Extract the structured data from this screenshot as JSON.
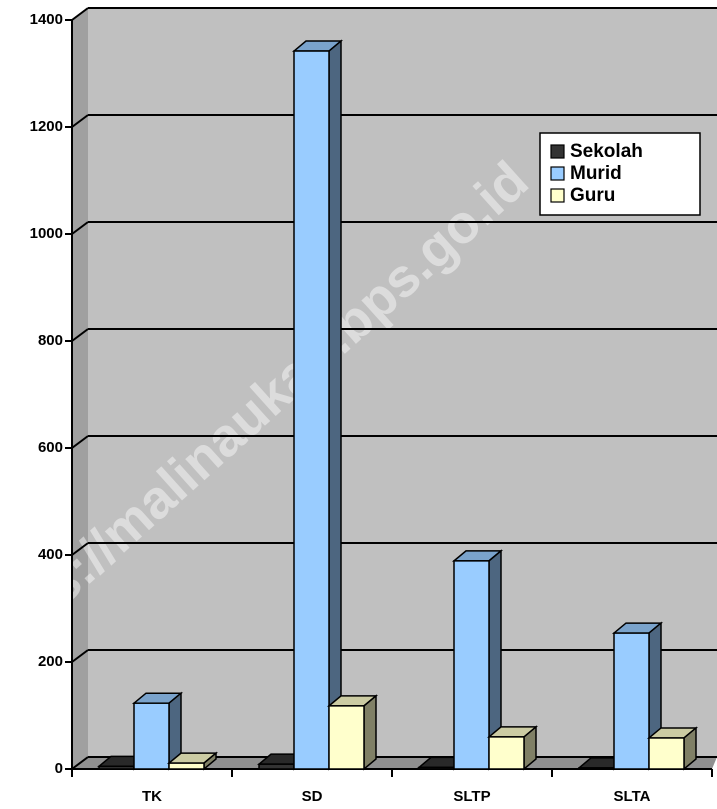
{
  "chart_data": {
    "type": "bar3d",
    "watermark": "https://malinaukab.bps.go.id",
    "categories": [
      "TK",
      "SD",
      "SLTP",
      "SLTA"
    ],
    "series": [
      {
        "name": "Sekolah",
        "color": "#333333",
        "values": [
          5,
          9,
          3,
          2
        ]
      },
      {
        "name": "Murid",
        "color": "#99ccff",
        "values": [
          123,
          1342,
          389,
          254
        ]
      },
      {
        "name": "Guru",
        "color": "#ffffcc",
        "values": [
          11,
          118,
          60,
          58
        ]
      }
    ],
    "ylim": [
      0,
      1400
    ],
    "yticks": [
      0,
      200,
      400,
      600,
      800,
      1000,
      1200,
      1400
    ],
    "grid": true,
    "legend": "upper right"
  }
}
